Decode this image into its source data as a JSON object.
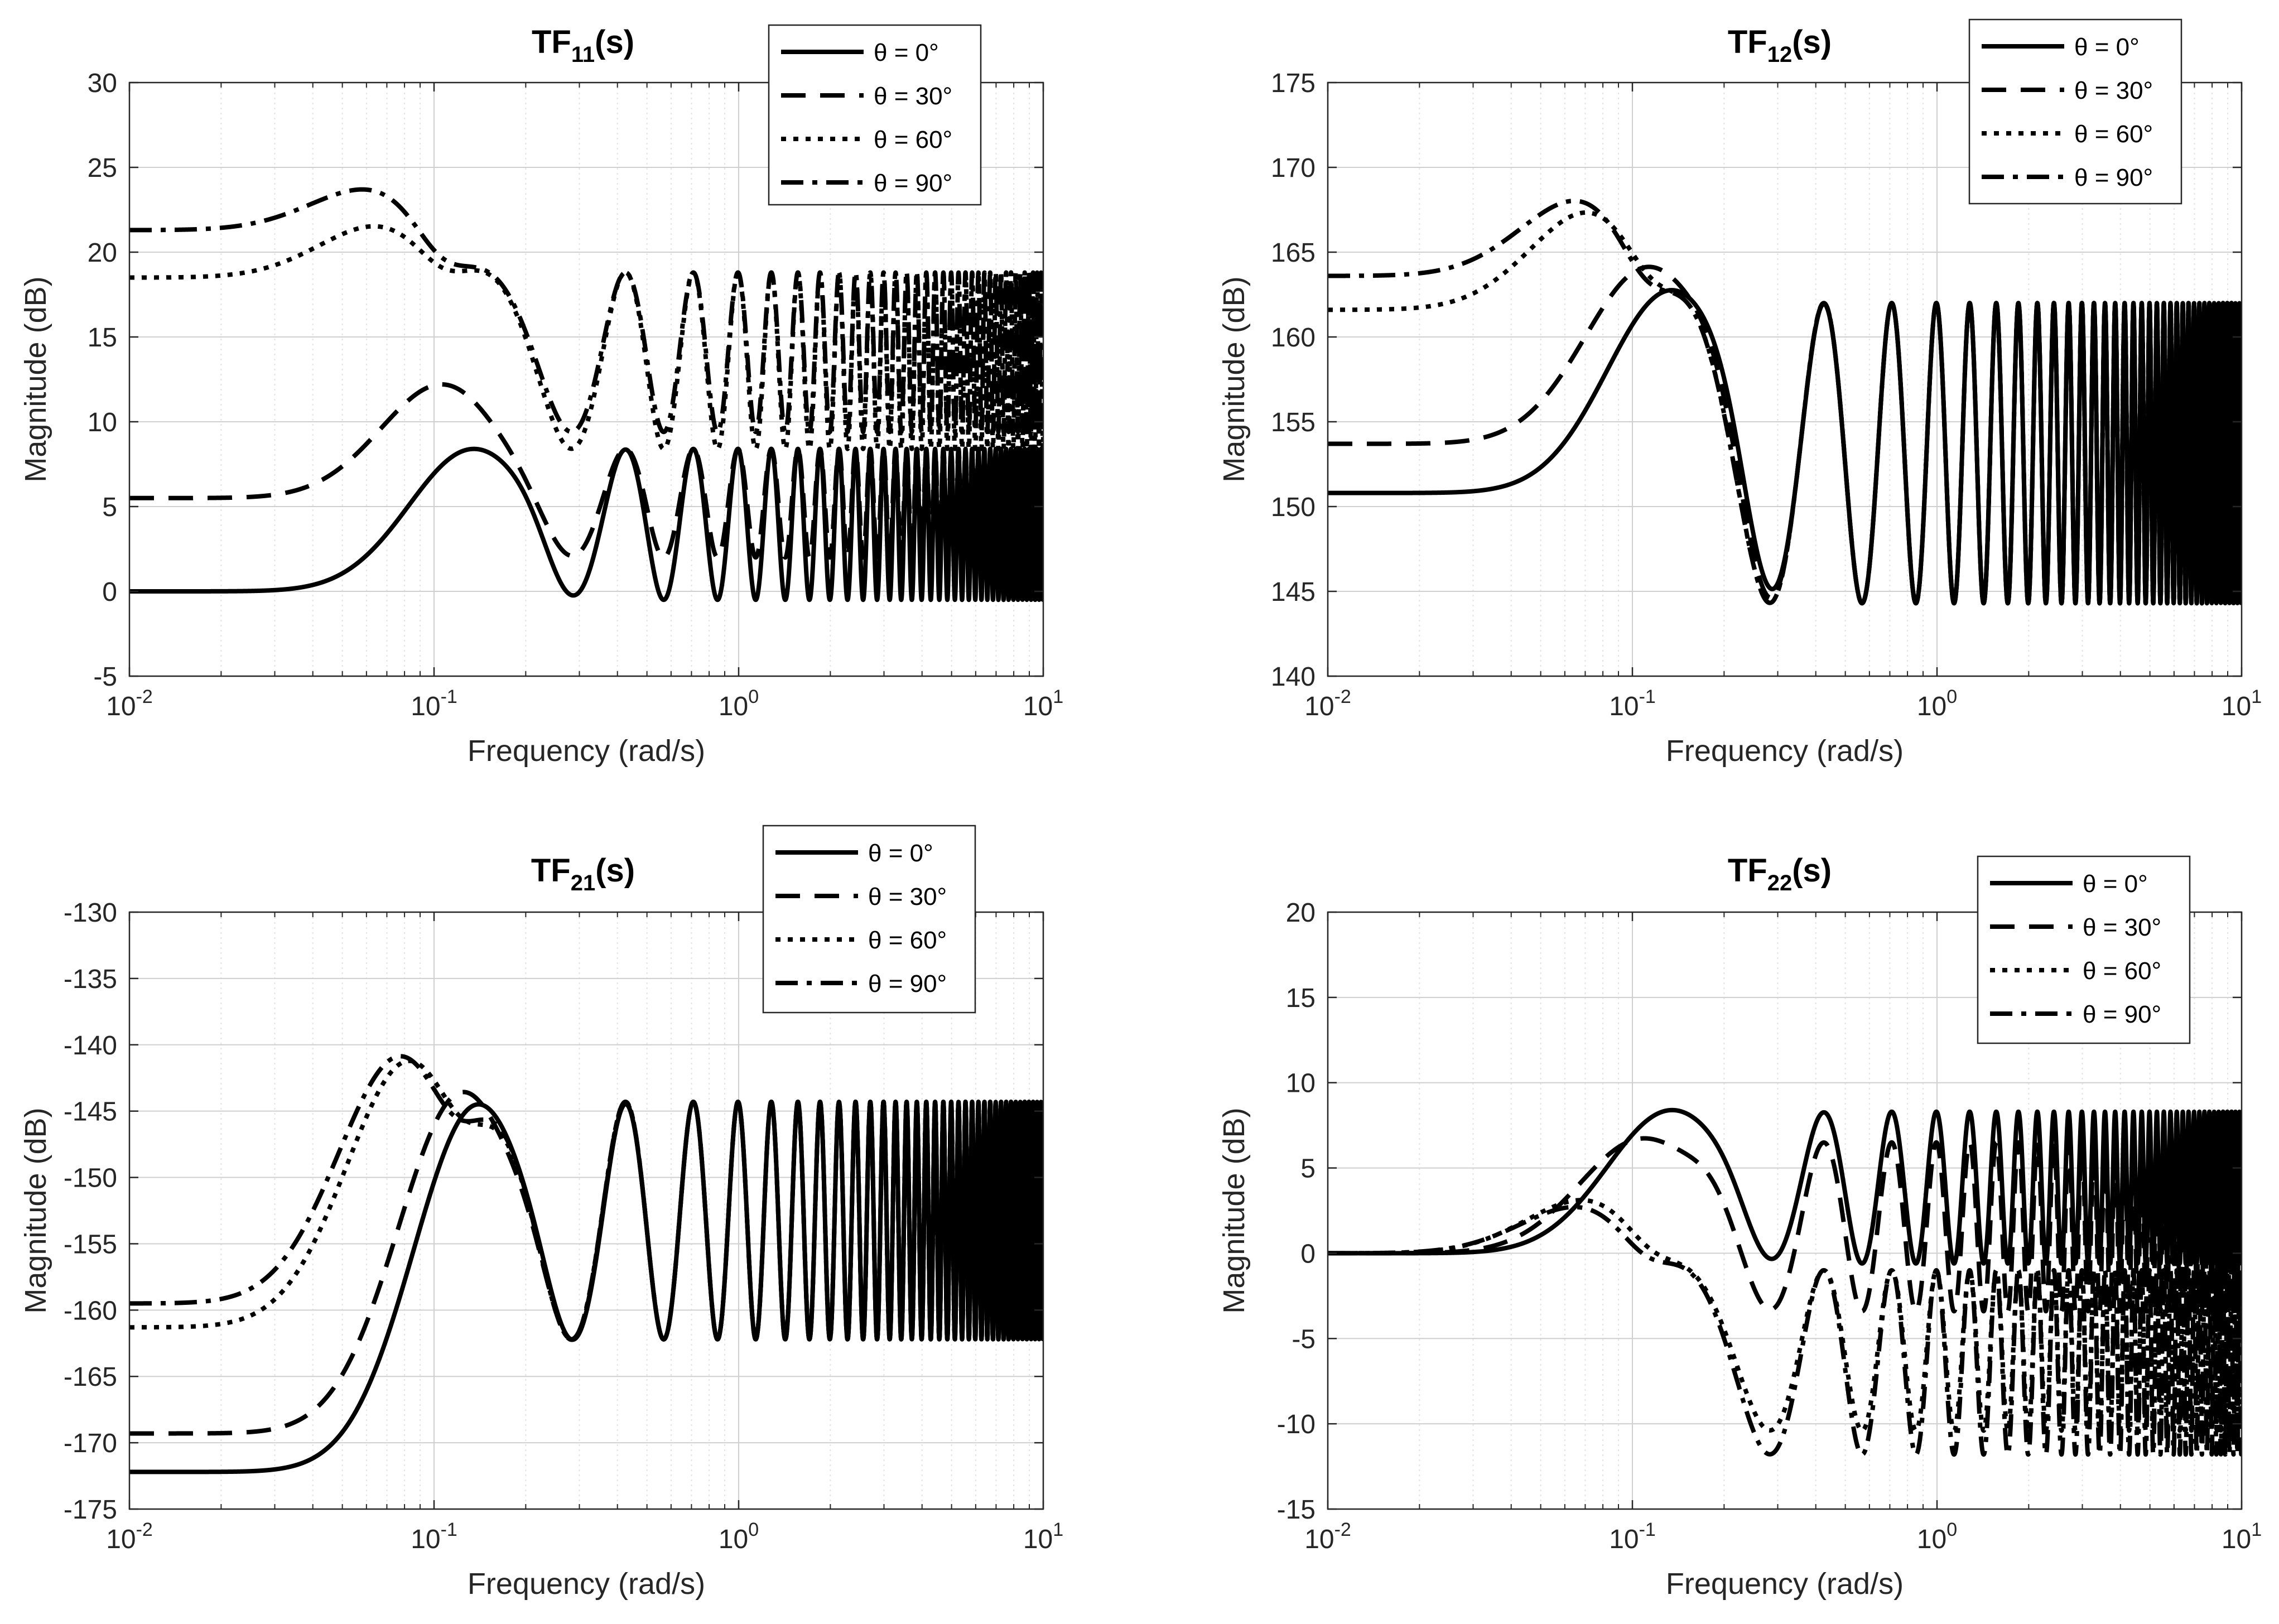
{
  "chart_data": [
    {
      "type": "line",
      "title_main": "TF",
      "title_sub": "11",
      "title_tail": "(s)",
      "xlabel": "Frequency (rad/s)",
      "ylabel": "Magnitude (dB)",
      "xscale": "log",
      "xlim": [
        0.01,
        10
      ],
      "ylim": [
        -5,
        30
      ],
      "yticks": [
        -5,
        0,
        5,
        10,
        15,
        20,
        25,
        30
      ],
      "xticks": [
        {
          "base": "10",
          "exp": "-2"
        },
        {
          "base": "10",
          "exp": "-1"
        },
        {
          "base": "10",
          "exp": "0"
        },
        {
          "base": "10",
          "exp": "1"
        }
      ],
      "grid": true,
      "legend_position": "top-center",
      "series": [
        {
          "name": "θ = 0°",
          "style": "solid",
          "low": 0.0,
          "peak_w": 0.135,
          "peak_val": 8.4,
          "osc_max": 8.4,
          "osc_min": -0.5
        },
        {
          "name": "θ = 30°",
          "style": "dashed",
          "low": 5.5,
          "peak_w": 0.11,
          "peak_val": 12.4,
          "osc_max": 8.4,
          "osc_min": 2.0
        },
        {
          "name": "θ = 60°",
          "style": "dotted",
          "low": 18.5,
          "peak_w": 0.07,
          "peak_val": 21.8,
          "osc_max": 18.8,
          "osc_min": 8.4
        },
        {
          "name": "θ = 90°",
          "style": "dashdot",
          "low": 21.3,
          "peak_w": 0.066,
          "peak_val": 24.0,
          "osc_max": 18.8,
          "osc_min": 9.4
        }
      ]
    },
    {
      "type": "line",
      "title_main": "TF",
      "title_sub": "12",
      "title_tail": "(s)",
      "xlabel": "Frequency (rad/s)",
      "ylabel": "Magnitude (dB)",
      "xscale": "log",
      "xlim": [
        0.01,
        10
      ],
      "ylim": [
        140,
        175
      ],
      "yticks": [
        140,
        145,
        150,
        155,
        160,
        165,
        170,
        175
      ],
      "xticks": [
        {
          "base": "10",
          "exp": "-2"
        },
        {
          "base": "10",
          "exp": "-1"
        },
        {
          "base": "10",
          "exp": "0"
        },
        {
          "base": "10",
          "exp": "1"
        }
      ],
      "grid": true,
      "legend_position": "top-right",
      "series": [
        {
          "name": "θ = 0°",
          "style": "solid",
          "low": 150.8,
          "peak_w": 0.135,
          "peak_val": 162.8,
          "osc_max": 162.0,
          "osc_min": 144.3
        },
        {
          "name": "θ = 30°",
          "style": "dashed",
          "low": 153.7,
          "peak_w": 0.115,
          "peak_val": 164.3,
          "osc_max": 162.0,
          "osc_min": 144.3
        },
        {
          "name": "θ = 60°",
          "style": "dotted",
          "low": 161.6,
          "peak_w": 0.077,
          "peak_val": 167.8,
          "osc_max": 162.0,
          "osc_min": 144.3
        },
        {
          "name": "θ = 90°",
          "style": "dashdot",
          "low": 163.6,
          "peak_w": 0.072,
          "peak_val": 168.5,
          "osc_max": 162.0,
          "osc_min": 144.3
        }
      ]
    },
    {
      "type": "line",
      "title_main": "TF",
      "title_sub": "21",
      "title_tail": "(s)",
      "xlabel": "Frequency (rad/s)",
      "ylabel": "Magnitude (dB)",
      "xscale": "log",
      "xlim": [
        0.01,
        10
      ],
      "ylim": [
        -175,
        -130
      ],
      "yticks": [
        -175,
        -170,
        -165,
        -160,
        -155,
        -150,
        -145,
        -140,
        -135,
        -130
      ],
      "xticks": [
        {
          "base": "10",
          "exp": "-2"
        },
        {
          "base": "10",
          "exp": "-1"
        },
        {
          "base": "10",
          "exp": "0"
        },
        {
          "base": "10",
          "exp": "1"
        }
      ],
      "grid": true,
      "legend_position": "top-center",
      "series": [
        {
          "name": "θ = 0°",
          "style": "solid",
          "low": -172.2,
          "peak_w": 0.14,
          "peak_val": -144.5,
          "osc_max": -144.3,
          "osc_min": -162.2
        },
        {
          "name": "θ = 30°",
          "style": "dashed",
          "low": -169.3,
          "peak_w": 0.125,
          "peak_val": -143.5,
          "osc_max": -144.3,
          "osc_min": -162.2
        },
        {
          "name": "θ = 60°",
          "style": "dotted",
          "low": -161.3,
          "peak_w": 0.085,
          "peak_val": -140.8,
          "osc_max": -144.3,
          "osc_min": -162.2
        },
        {
          "name": "θ = 90°",
          "style": "dashdot",
          "low": -159.5,
          "peak_w": 0.08,
          "peak_val": -140.4,
          "osc_max": -144.3,
          "osc_min": -162.2
        }
      ]
    },
    {
      "type": "line",
      "title_main": "TF",
      "title_sub": "22",
      "title_tail": "(s)",
      "xlabel": "Frequency (rad/s)",
      "ylabel": "Magnitude (dB)",
      "xscale": "log",
      "xlim": [
        0.01,
        10
      ],
      "ylim": [
        -15,
        20
      ],
      "yticks": [
        -15,
        -10,
        -5,
        0,
        5,
        10,
        15,
        20
      ],
      "xticks": [
        {
          "base": "10",
          "exp": "-2"
        },
        {
          "base": "10",
          "exp": "-1"
        },
        {
          "base": "10",
          "exp": "0"
        },
        {
          "base": "10",
          "exp": "1"
        }
      ],
      "grid": true,
      "legend_position": "top-right",
      "series": [
        {
          "name": "θ = 0°",
          "style": "solid",
          "low": 0.0,
          "peak_w": 0.135,
          "peak_val": 8.4,
          "osc_max": 8.3,
          "osc_min": -0.6
        },
        {
          "name": "θ = 30°",
          "style": "dashed",
          "low": 0.0,
          "peak_w": 0.11,
          "peak_val": 6.8,
          "osc_max": 6.5,
          "osc_min": -3.4
        },
        {
          "name": "θ = 60°",
          "style": "dotted",
          "low": 0.0,
          "peak_w": 0.075,
          "peak_val": 3.4,
          "osc_max": -1.0,
          "osc_min": -10.4
        },
        {
          "name": "θ = 90°",
          "style": "dashdot",
          "low": 0.0,
          "peak_w": 0.072,
          "peak_val": 3.0,
          "osc_max": -1.0,
          "osc_min": -11.8
        }
      ]
    }
  ]
}
